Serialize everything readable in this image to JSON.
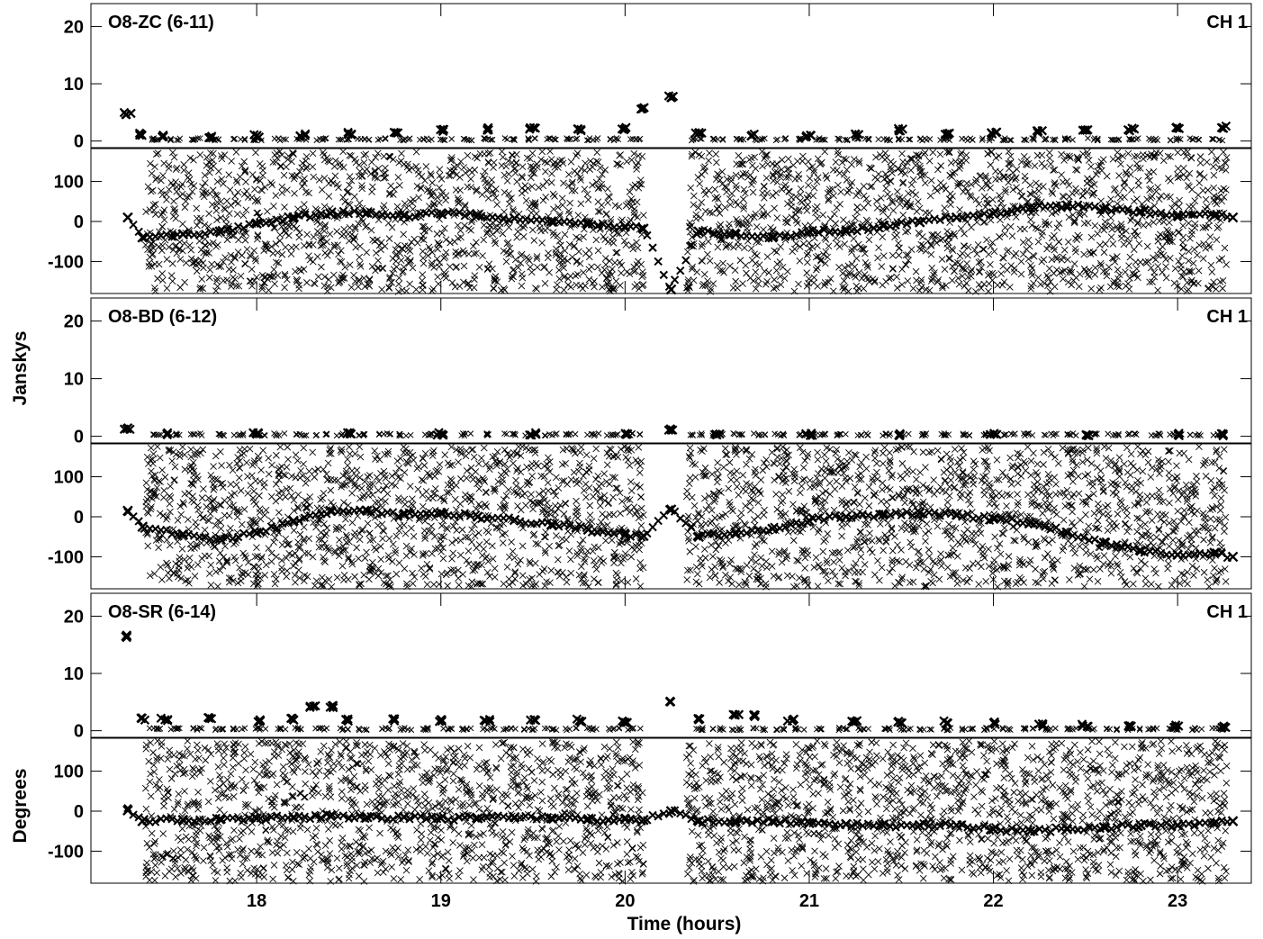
{
  "chart_data": {
    "type": "scatter",
    "xlabel": "Time (hours)",
    "xlim": [
      17.1,
      23.4
    ],
    "x_ticks": [
      18,
      19,
      20,
      21,
      22,
      23
    ],
    "x_tick_labels": [
      "18",
      "19",
      "20",
      "21",
      "22",
      "23"
    ],
    "amplitude_ylabel": "Janskys",
    "phase_ylabel": "Degrees",
    "amplitude_ylim": [
      -1,
      24
    ],
    "phase_ylim": [
      -180,
      180
    ],
    "amplitude_ticks": [
      20,
      10,
      0
    ],
    "amplitude_tick_labels": [
      "20",
      "10",
      "0"
    ],
    "phase_ticks": [
      100,
      0,
      -100
    ],
    "phase_tick_labels": [
      "100",
      "0",
      "-100"
    ],
    "marker": "x",
    "scan_gap": [
      20.17,
      20.33
    ],
    "panels": [
      {
        "baseline": "O8-ZC (6-11)",
        "channel": "CH 1",
        "amplitude": [
          {
            "x": 17.3,
            "y": 4.8
          },
          {
            "x": 17.38,
            "y": 1.2
          },
          {
            "x": 17.5,
            "y": 0.9
          },
          {
            "x": 17.75,
            "y": 0.8
          },
          {
            "x": 18.0,
            "y": 0.9
          },
          {
            "x": 18.25,
            "y": 1.1
          },
          {
            "x": 18.5,
            "y": 1.3
          },
          {
            "x": 18.75,
            "y": 1.5
          },
          {
            "x": 19.0,
            "y": 1.8
          },
          {
            "x": 19.25,
            "y": 2.1
          },
          {
            "x": 19.5,
            "y": 2.3
          },
          {
            "x": 19.75,
            "y": 1.9
          },
          {
            "x": 20.0,
            "y": 2.2
          },
          {
            "x": 20.1,
            "y": 5.8
          },
          {
            "x": 20.25,
            "y": 7.8
          },
          {
            "x": 20.4,
            "y": 1.4
          },
          {
            "x": 20.7,
            "y": 1.1
          },
          {
            "x": 21.0,
            "y": 0.9
          },
          {
            "x": 21.25,
            "y": 1.0
          },
          {
            "x": 21.5,
            "y": 2.0
          },
          {
            "x": 21.75,
            "y": 1.2
          },
          {
            "x": 22.0,
            "y": 1.4
          },
          {
            "x": 22.25,
            "y": 1.6
          },
          {
            "x": 22.5,
            "y": 1.8
          },
          {
            "x": 22.75,
            "y": 2.0
          },
          {
            "x": 23.0,
            "y": 2.2
          },
          {
            "x": 23.25,
            "y": 2.4
          }
        ],
        "phase": [
          {
            "x": 17.3,
            "y": 10
          },
          {
            "x": 17.38,
            "y": -40
          },
          {
            "x": 17.6,
            "y": -32
          },
          {
            "x": 17.8,
            "y": -25
          },
          {
            "x": 18.0,
            "y": -5
          },
          {
            "x": 18.2,
            "y": 10
          },
          {
            "x": 18.4,
            "y": 20
          },
          {
            "x": 18.6,
            "y": 22
          },
          {
            "x": 18.8,
            "y": 14
          },
          {
            "x": 19.0,
            "y": 20
          },
          {
            "x": 19.2,
            "y": 16
          },
          {
            "x": 19.4,
            "y": 8
          },
          {
            "x": 19.6,
            "y": 0
          },
          {
            "x": 19.8,
            "y": -6
          },
          {
            "x": 20.0,
            "y": -12
          },
          {
            "x": 20.1,
            "y": -18
          },
          {
            "x": 20.25,
            "y": -170
          },
          {
            "x": 20.4,
            "y": -25
          },
          {
            "x": 20.6,
            "y": -32
          },
          {
            "x": 20.8,
            "y": -40
          },
          {
            "x": 21.0,
            "y": -25
          },
          {
            "x": 21.2,
            "y": -25
          },
          {
            "x": 21.4,
            "y": -10
          },
          {
            "x": 21.6,
            "y": -2
          },
          {
            "x": 21.8,
            "y": 10
          },
          {
            "x": 22.0,
            "y": 20
          },
          {
            "x": 22.2,
            "y": 35
          },
          {
            "x": 22.4,
            "y": 40
          },
          {
            "x": 22.6,
            "y": 30
          },
          {
            "x": 22.8,
            "y": 25
          },
          {
            "x": 23.0,
            "y": 15
          },
          {
            "x": 23.2,
            "y": 15
          },
          {
            "x": 23.3,
            "y": 10
          }
        ]
      },
      {
        "baseline": "O8-BD (6-12)",
        "channel": "CH 1",
        "amplitude": [
          {
            "x": 17.3,
            "y": 1.4
          },
          {
            "x": 17.5,
            "y": 0.4
          },
          {
            "x": 18.0,
            "y": 0.4
          },
          {
            "x": 18.5,
            "y": 0.4
          },
          {
            "x": 19.0,
            "y": 0.4
          },
          {
            "x": 19.5,
            "y": 0.4
          },
          {
            "x": 20.0,
            "y": 0.4
          },
          {
            "x": 20.25,
            "y": 1.2
          },
          {
            "x": 20.5,
            "y": 0.3
          },
          {
            "x": 21.0,
            "y": 0.3
          },
          {
            "x": 21.5,
            "y": 0.3
          },
          {
            "x": 22.0,
            "y": 0.3
          },
          {
            "x": 22.5,
            "y": 0.3
          },
          {
            "x": 23.0,
            "y": 0.3
          },
          {
            "x": 23.25,
            "y": 0.3
          }
        ],
        "phase": [
          {
            "x": 17.3,
            "y": 15
          },
          {
            "x": 17.38,
            "y": -25
          },
          {
            "x": 17.6,
            "y": -45
          },
          {
            "x": 17.8,
            "y": -55
          },
          {
            "x": 18.0,
            "y": -40
          },
          {
            "x": 18.2,
            "y": -10
          },
          {
            "x": 18.4,
            "y": 15
          },
          {
            "x": 18.6,
            "y": 15
          },
          {
            "x": 18.8,
            "y": 5
          },
          {
            "x": 19.0,
            "y": 10
          },
          {
            "x": 19.2,
            "y": 0
          },
          {
            "x": 19.4,
            "y": -8
          },
          {
            "x": 19.6,
            "y": -20
          },
          {
            "x": 19.8,
            "y": -32
          },
          {
            "x": 20.0,
            "y": -45
          },
          {
            "x": 20.1,
            "y": -48
          },
          {
            "x": 20.25,
            "y": 18
          },
          {
            "x": 20.4,
            "y": -50
          },
          {
            "x": 20.6,
            "y": -40
          },
          {
            "x": 20.8,
            "y": -30
          },
          {
            "x": 21.0,
            "y": -10
          },
          {
            "x": 21.2,
            "y": 0
          },
          {
            "x": 21.4,
            "y": 5
          },
          {
            "x": 21.6,
            "y": 10
          },
          {
            "x": 21.8,
            "y": 5
          },
          {
            "x": 22.0,
            "y": -5
          },
          {
            "x": 22.2,
            "y": -15
          },
          {
            "x": 22.4,
            "y": -40
          },
          {
            "x": 22.6,
            "y": -65
          },
          {
            "x": 22.8,
            "y": -85
          },
          {
            "x": 23.0,
            "y": -95
          },
          {
            "x": 23.2,
            "y": -90
          },
          {
            "x": 23.3,
            "y": -100
          }
        ]
      },
      {
        "baseline": "O8-SR (6-14)",
        "channel": "CH 1",
        "amplitude": [
          {
            "x": 17.3,
            "y": 16.5
          },
          {
            "x": 17.38,
            "y": 2.0
          },
          {
            "x": 17.5,
            "y": 2.0
          },
          {
            "x": 17.75,
            "y": 2.2
          },
          {
            "x": 18.0,
            "y": 1.8
          },
          {
            "x": 18.2,
            "y": 2.0
          },
          {
            "x": 18.3,
            "y": 4.2
          },
          {
            "x": 18.4,
            "y": 4.2
          },
          {
            "x": 18.5,
            "y": 1.9
          },
          {
            "x": 18.75,
            "y": 1.9
          },
          {
            "x": 19.0,
            "y": 1.8
          },
          {
            "x": 19.25,
            "y": 1.8
          },
          {
            "x": 19.5,
            "y": 1.8
          },
          {
            "x": 19.75,
            "y": 1.8
          },
          {
            "x": 20.0,
            "y": 1.6
          },
          {
            "x": 20.25,
            "y": 5.0
          },
          {
            "x": 20.4,
            "y": 1.9
          },
          {
            "x": 20.6,
            "y": 2.8
          },
          {
            "x": 20.7,
            "y": 2.6
          },
          {
            "x": 20.9,
            "y": 1.9
          },
          {
            "x": 21.25,
            "y": 1.7
          },
          {
            "x": 21.5,
            "y": 1.5
          },
          {
            "x": 21.75,
            "y": 1.5
          },
          {
            "x": 22.0,
            "y": 1.3
          },
          {
            "x": 22.25,
            "y": 1.0
          },
          {
            "x": 22.5,
            "y": 1.0
          },
          {
            "x": 22.75,
            "y": 0.9
          },
          {
            "x": 23.0,
            "y": 0.8
          },
          {
            "x": 23.25,
            "y": 0.7
          }
        ],
        "phase": [
          {
            "x": 17.3,
            "y": 2
          },
          {
            "x": 17.38,
            "y": -25
          },
          {
            "x": 17.6,
            "y": -22
          },
          {
            "x": 17.8,
            "y": -20
          },
          {
            "x": 18.0,
            "y": -18
          },
          {
            "x": 18.2,
            "y": -15
          },
          {
            "x": 18.4,
            "y": -12
          },
          {
            "x": 18.6,
            "y": -15
          },
          {
            "x": 18.8,
            "y": -15
          },
          {
            "x": 19.0,
            "y": -18
          },
          {
            "x": 19.2,
            "y": -18
          },
          {
            "x": 19.4,
            "y": -15
          },
          {
            "x": 19.6,
            "y": -18
          },
          {
            "x": 19.8,
            "y": -20
          },
          {
            "x": 20.0,
            "y": -20
          },
          {
            "x": 20.1,
            "y": -22
          },
          {
            "x": 20.25,
            "y": 0
          },
          {
            "x": 20.4,
            "y": -25
          },
          {
            "x": 20.6,
            "y": -25
          },
          {
            "x": 20.8,
            "y": -25
          },
          {
            "x": 21.0,
            "y": -30
          },
          {
            "x": 21.2,
            "y": -32
          },
          {
            "x": 21.4,
            "y": -35
          },
          {
            "x": 21.6,
            "y": -35
          },
          {
            "x": 21.8,
            "y": -35
          },
          {
            "x": 22.0,
            "y": -45
          },
          {
            "x": 22.2,
            "y": -50
          },
          {
            "x": 22.4,
            "y": -45
          },
          {
            "x": 22.6,
            "y": -40
          },
          {
            "x": 22.8,
            "y": -35
          },
          {
            "x": 23.0,
            "y": -35
          },
          {
            "x": 23.2,
            "y": -30
          },
          {
            "x": 23.3,
            "y": -25
          }
        ]
      }
    ]
  }
}
